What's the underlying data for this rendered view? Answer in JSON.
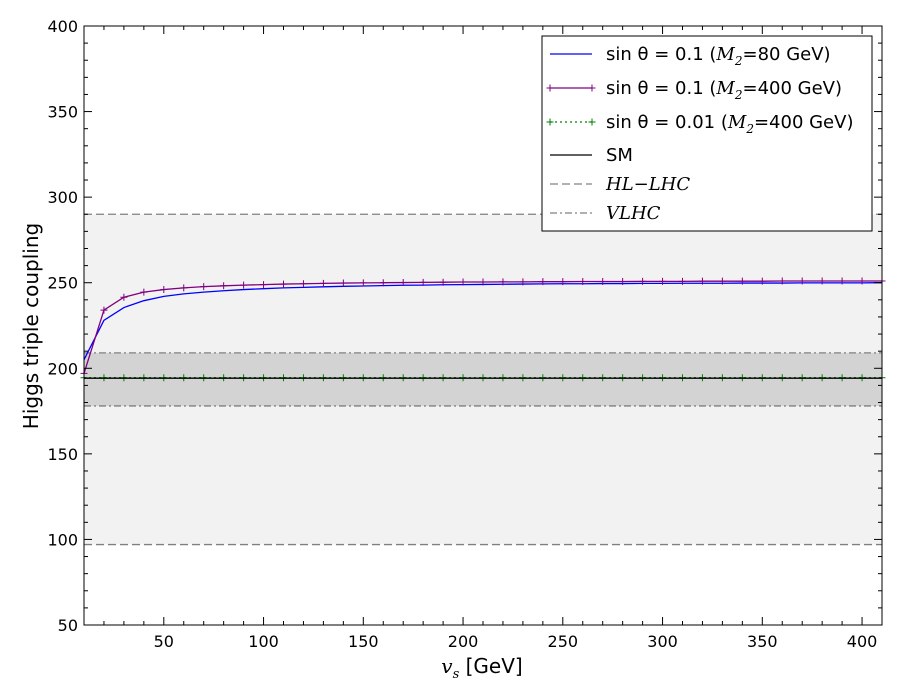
{
  "chart_data": {
    "type": "line",
    "xlabel_symbol": "v",
    "xlabel_sub": "s",
    "xlabel_unit": " [GeV]",
    "ylabel": "Higgs triple coupling",
    "xlim": [
      10,
      410
    ],
    "ylim": [
      50,
      400
    ],
    "x_ticks": [
      50,
      100,
      150,
      200,
      250,
      300,
      350,
      400
    ],
    "y_ticks": [
      50,
      100,
      150,
      200,
      250,
      300,
      350,
      400
    ],
    "grid": false,
    "legend_position": "top-right",
    "bands": [
      {
        "name": "HL-LHC",
        "range": [
          97,
          290
        ],
        "color": "#f2f2f2",
        "edge_color": "#808080",
        "edge_style": "dashed"
      },
      {
        "name": "VLHC",
        "range": [
          178,
          209
        ],
        "color": "#d3d3d3",
        "edge_color": "#808080",
        "edge_style": "dashdot"
      }
    ],
    "x": [
      10,
      20,
      30,
      40,
      50,
      60,
      70,
      80,
      90,
      100,
      110,
      120,
      130,
      140,
      150,
      160,
      170,
      180,
      190,
      200,
      210,
      220,
      230,
      240,
      250,
      260,
      270,
      280,
      290,
      300,
      310,
      320,
      330,
      340,
      350,
      360,
      370,
      380,
      390,
      400,
      410
    ],
    "series": [
      {
        "name_prefix": "sin θ = 0.1 (",
        "name_sub": "2",
        "name_suffix": "=80 GeV)",
        "color": "#0000ff",
        "style": "solid",
        "marker": "none",
        "values": [
          205,
          228,
          235.5,
          239.5,
          242,
          243.5,
          244.5,
          245.3,
          246,
          246.5,
          247,
          247.3,
          247.6,
          247.9,
          248.1,
          248.3,
          248.5,
          248.6,
          248.8,
          248.9,
          249,
          249.1,
          249.2,
          249.3,
          249.4,
          249.4,
          249.5,
          249.5,
          249.6,
          249.6,
          249.7,
          249.7,
          249.7,
          249.8,
          249.8,
          249.8,
          249.9,
          249.9,
          249.9,
          249.9,
          250
        ]
      },
      {
        "name_prefix": "sin θ = 0.1 (",
        "name_sub": "2",
        "name_suffix": "=400 GeV)",
        "color": "#800080",
        "style": "solid",
        "marker": "plus",
        "values": [
          197,
          234,
          241.5,
          244.5,
          246,
          247,
          247.7,
          248.2,
          248.6,
          248.9,
          249.2,
          249.4,
          249.6,
          249.8,
          249.9,
          250,
          250.1,
          250.2,
          250.3,
          250.4,
          250.4,
          250.5,
          250.5,
          250.6,
          250.6,
          250.7,
          250.7,
          250.7,
          250.8,
          250.8,
          250.8,
          250.9,
          250.9,
          250.9,
          250.9,
          251,
          251,
          251,
          251,
          251,
          251
        ]
      },
      {
        "name_prefix": "sin θ = 0.01 (",
        "name_sub": "2",
        "name_suffix": "=400 GeV)",
        "color": "#008000",
        "style": "dotted",
        "marker": "plus",
        "values": [
          194.5,
          194.5,
          194.5,
          194.5,
          194.5,
          194.5,
          194.5,
          194.5,
          194.5,
          194.5,
          194.5,
          194.5,
          194.5,
          194.5,
          194.5,
          194.5,
          194.5,
          194.5,
          194.5,
          194.5,
          194.5,
          194.5,
          194.5,
          194.5,
          194.5,
          194.5,
          194.5,
          194.5,
          194.5,
          194.5,
          194.5,
          194.5,
          194.5,
          194.5,
          194.5,
          194.5,
          194.5,
          194.5,
          194.5,
          194.5,
          194.5
        ]
      },
      {
        "name_prefix": "SM",
        "name_sub": "",
        "name_suffix": "",
        "color": "#000000",
        "style": "solid",
        "marker": "none",
        "values": [
          194.2,
          194.2,
          194.2,
          194.2,
          194.2,
          194.2,
          194.2,
          194.2,
          194.2,
          194.2,
          194.2,
          194.2,
          194.2,
          194.2,
          194.2,
          194.2,
          194.2,
          194.2,
          194.2,
          194.2,
          194.2,
          194.2,
          194.2,
          194.2,
          194.2,
          194.2,
          194.2,
          194.2,
          194.2,
          194.2,
          194.2,
          194.2,
          194.2,
          194.2,
          194.2,
          194.2,
          194.2,
          194.2,
          194.2,
          194.2,
          194.2
        ]
      }
    ],
    "legend_bands": [
      {
        "label": "HL−LHC",
        "style": "dashed",
        "color": "#808080"
      },
      {
        "label": "VLHC",
        "style": "dashdot",
        "color": "#808080"
      }
    ]
  }
}
